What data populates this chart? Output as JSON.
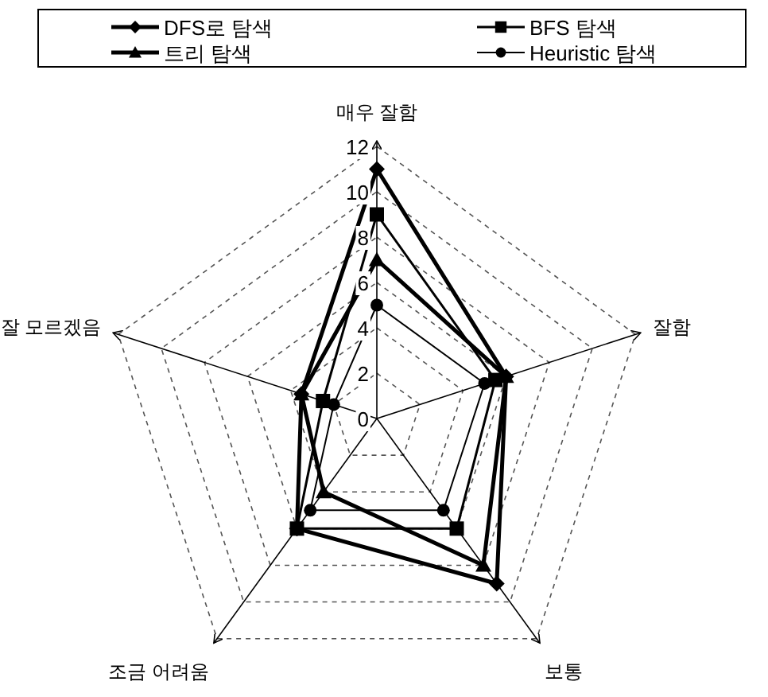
{
  "chart_data": {
    "type": "radar",
    "categories": [
      "매우 잘함",
      "잘함",
      "보통",
      "조금 어려움",
      "잘 모르겠음"
    ],
    "series": [
      {
        "name": "DFS로 탐색",
        "color": "#000000",
        "marker": "diamond",
        "values": [
          11,
          6,
          9,
          6,
          3.5
        ]
      },
      {
        "name": "BFS 탐색",
        "color": "#000000",
        "marker": "square",
        "values": [
          9,
          5.5,
          6,
          6,
          2.5
        ]
      },
      {
        "name": "트리 탐색",
        "color": "#000000",
        "marker": "triangle",
        "values": [
          7,
          6,
          8,
          4,
          3.5
        ]
      },
      {
        "name": "Heuristic 탐색",
        "color": "#000000",
        "marker": "circle",
        "values": [
          5,
          5,
          5,
          5,
          2
        ]
      }
    ],
    "ylim": [
      0,
      12
    ],
    "yticks": [
      0,
      2,
      4,
      6,
      8,
      10,
      12
    ],
    "grid": true,
    "legend": "top"
  }
}
